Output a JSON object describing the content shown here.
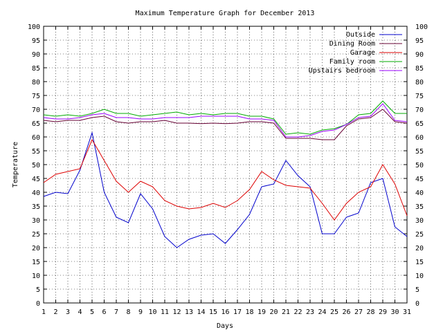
{
  "chart_data": {
    "type": "line",
    "title": "Maximum Temperature Graph for December 2013",
    "xlabel": "Days",
    "ylabel": "Temperature",
    "xlim": [
      1,
      31
    ],
    "ylim": [
      0,
      100
    ],
    "x_ticks": [
      1,
      2,
      3,
      4,
      5,
      6,
      7,
      8,
      9,
      10,
      11,
      12,
      13,
      14,
      15,
      16,
      17,
      18,
      19,
      20,
      21,
      22,
      23,
      24,
      25,
      26,
      27,
      28,
      29,
      30,
      31
    ],
    "y_ticks": [
      0,
      5,
      10,
      15,
      20,
      25,
      30,
      35,
      40,
      45,
      50,
      55,
      60,
      65,
      70,
      75,
      80,
      85,
      90,
      95,
      100
    ],
    "grid": true,
    "y_axis_mirrored_right": true,
    "legend_position": "top-right",
    "x": [
      1,
      2,
      3,
      4,
      5,
      6,
      7,
      8,
      9,
      10,
      11,
      12,
      13,
      14,
      15,
      16,
      17,
      18,
      19,
      20,
      21,
      22,
      23,
      24,
      25,
      26,
      27,
      28,
      29,
      30,
      31
    ],
    "series": [
      {
        "name": "Outside",
        "color": "#0000cc",
        "values": [
          38.5,
          40,
          39.5,
          48,
          61.5,
          40,
          31,
          29,
          39.5,
          34,
          24,
          20,
          23,
          24.5,
          25,
          21.5,
          26.5,
          32,
          42,
          43,
          51.5,
          46,
          42,
          25,
          25,
          31,
          32.5,
          43.5,
          45,
          27.5,
          24
        ]
      },
      {
        "name": "Dining Room",
        "color": "#660033",
        "values": [
          66,
          65.5,
          66,
          66,
          67,
          67.5,
          65.5,
          65,
          65.5,
          65.5,
          66,
          65,
          65,
          64.8,
          65,
          64.8,
          65,
          65.5,
          65.5,
          65,
          59.5,
          59.5,
          59.5,
          59,
          59,
          64,
          66.5,
          67,
          70,
          65.5,
          65
        ]
      },
      {
        "name": "Garage",
        "color": "#dd0000",
        "values": [
          43.5,
          46.5,
          47.5,
          48.5,
          59,
          51.5,
          44,
          40,
          44,
          42,
          37,
          35,
          34,
          34.5,
          36,
          34.5,
          37,
          41,
          47.5,
          44.5,
          42.5,
          42,
          41.5,
          36,
          30,
          36,
          40,
          42,
          50,
          43,
          31.5
        ]
      },
      {
        "name": "Family room",
        "color": "#00aa00",
        "values": [
          68,
          67.5,
          68,
          67.5,
          68.5,
          70,
          68.5,
          68.5,
          67.5,
          68,
          68.5,
          69,
          68,
          68.5,
          68,
          68.5,
          68.5,
          67.5,
          67.5,
          66.5,
          61,
          61.5,
          61,
          62.5,
          63,
          64.5,
          68,
          68.5,
          73,
          68.5,
          68.5
        ]
      },
      {
        "name": "Upstairs bedroom",
        "color": "#9900ff",
        "values": [
          67,
          66.5,
          66.5,
          67,
          68,
          68.5,
          67,
          67,
          66.5,
          66.5,
          67,
          67,
          67,
          67.5,
          67.5,
          67.5,
          67.5,
          66.5,
          66.5,
          66,
          60,
          60,
          60.5,
          62,
          62.5,
          64.5,
          67,
          67.5,
          72,
          66,
          65.5
        ]
      }
    ]
  }
}
